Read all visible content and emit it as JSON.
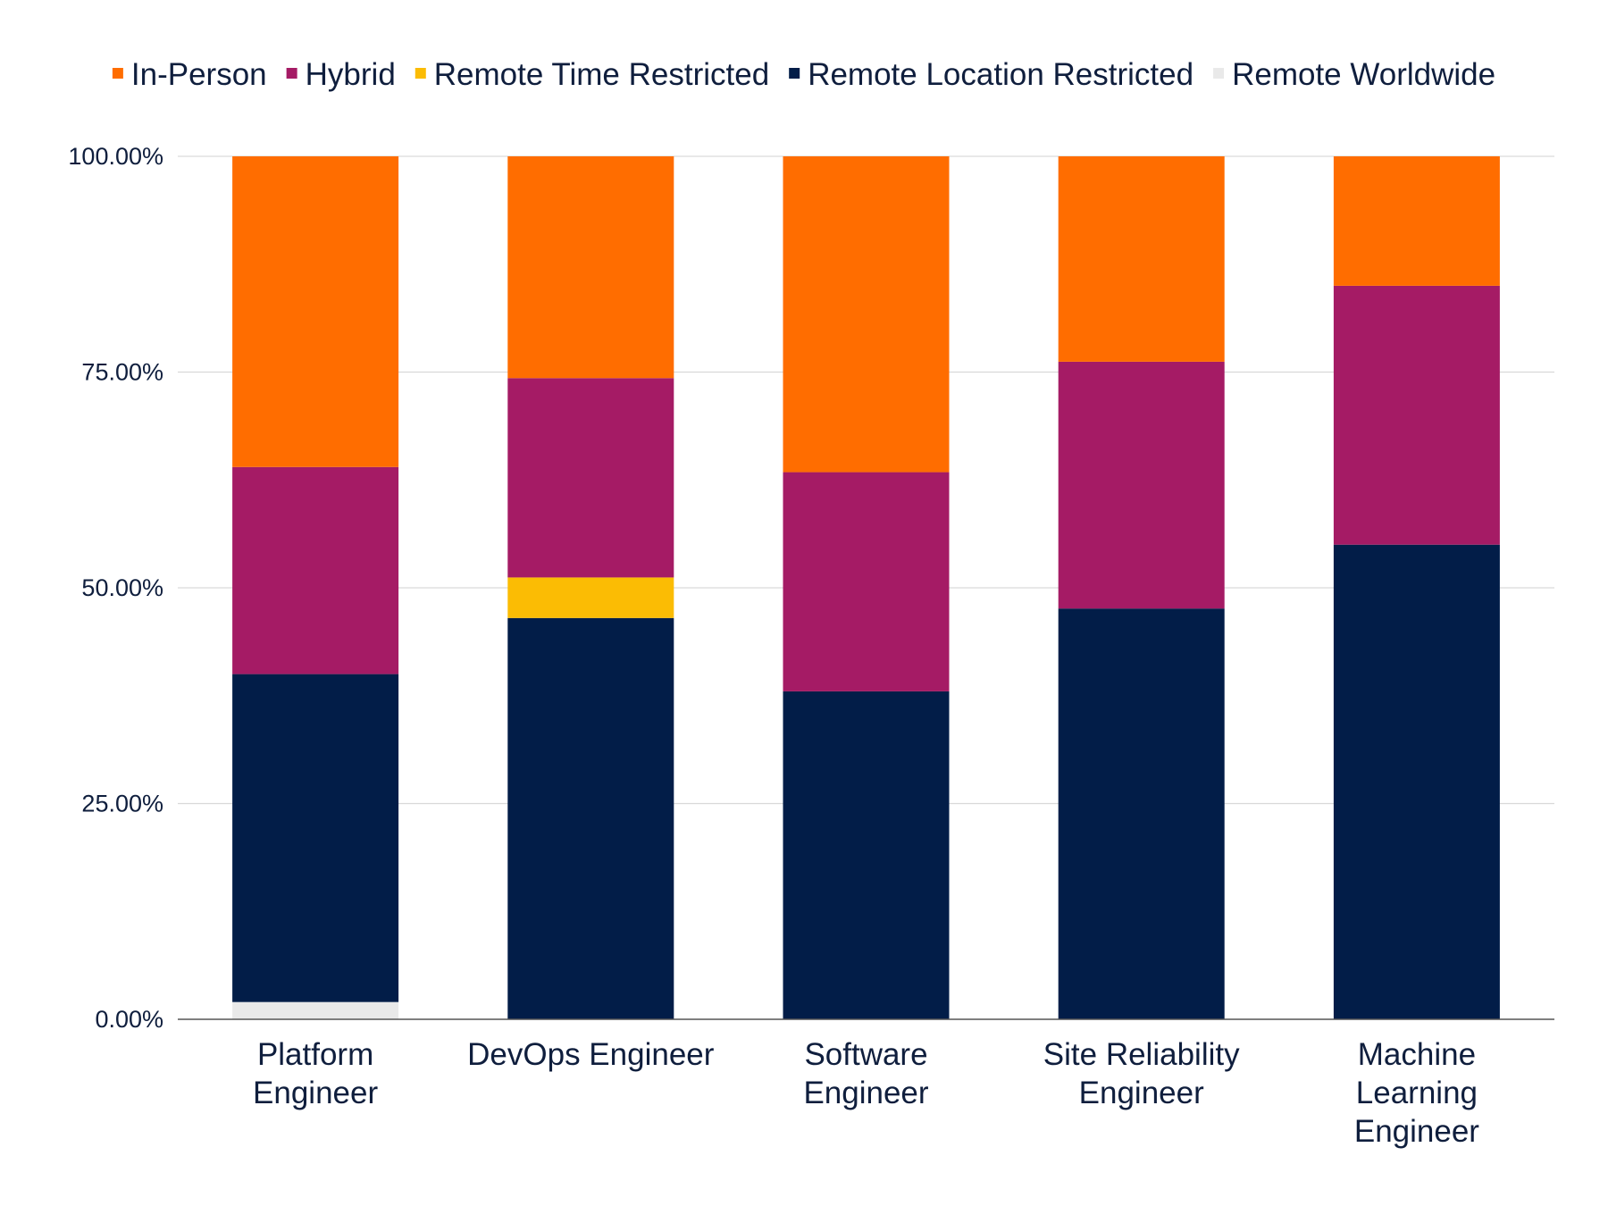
{
  "chart_data": {
    "type": "bar",
    "stacked": true,
    "categories": [
      [
        "Platform",
        "Engineer"
      ],
      [
        "DevOps Engineer"
      ],
      [
        "Software",
        "Engineer"
      ],
      [
        "Site Reliability",
        "Engineer"
      ],
      [
        "Machine",
        "Learning",
        "Engineer"
      ]
    ],
    "series": [
      {
        "name": "Remote Worldwide",
        "color": "#e9e9e9",
        "values": [
          2.0,
          0,
          0,
          0,
          0
        ]
      },
      {
        "name": "Remote Location Restricted",
        "color": "#021d48",
        "values": [
          38.0,
          46.5,
          38.0,
          47.6,
          55.0
        ]
      },
      {
        "name": "Remote Time Restricted",
        "color": "#fbbc04",
        "values": [
          0,
          4.7,
          0,
          0,
          0
        ]
      },
      {
        "name": "Hybrid",
        "color": "#a51b65",
        "values": [
          24.0,
          23.1,
          25.4,
          28.6,
          30.0
        ]
      },
      {
        "name": "In-Person",
        "color": "#ff6d00",
        "values": [
          36.0,
          25.7,
          36.6,
          23.8,
          15.0
        ]
      }
    ],
    "legend_order": [
      "In-Person",
      "Hybrid",
      "Remote Time Restricted",
      "Remote Location Restricted",
      "Remote Worldwide"
    ],
    "legend_position": "top",
    "yticks": [
      "0.00%",
      "25.00%",
      "50.00%",
      "75.00%",
      "100.00%"
    ],
    "ytick_values": [
      0,
      25,
      50,
      75,
      100
    ],
    "ylim": [
      0,
      100
    ],
    "grid": true,
    "title": "",
    "xlabel": "",
    "ylabel": ""
  }
}
